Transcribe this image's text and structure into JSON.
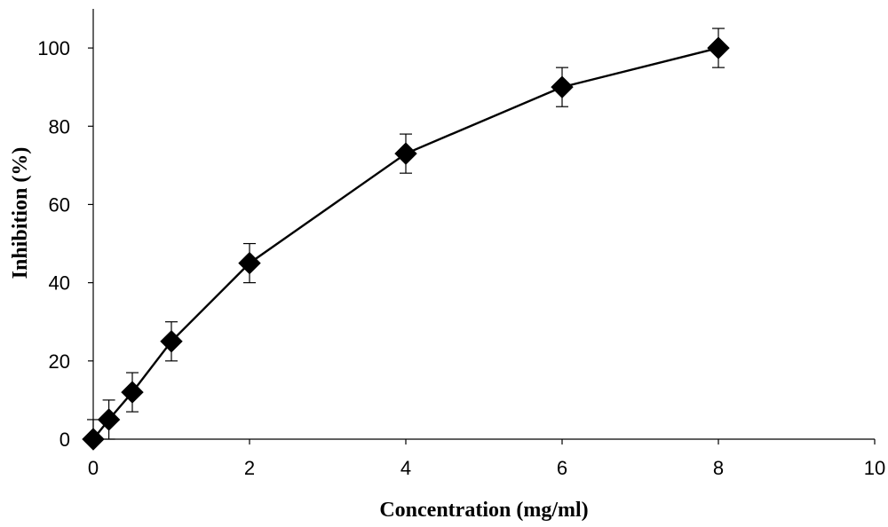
{
  "chart_data": {
    "type": "scatter",
    "title": "",
    "xlabel": "Concentration (mg/ml)",
    "ylabel": "Inhibition (%)",
    "xlim": [
      0,
      10
    ],
    "ylim": [
      0,
      110
    ],
    "x_ticks": [
      0,
      2,
      4,
      6,
      8,
      10
    ],
    "y_ticks": [
      0,
      20,
      40,
      60,
      80,
      100
    ],
    "grid": false,
    "legend": "none",
    "marker": "diamond",
    "line": "solid",
    "line_color": "#000000",
    "marker_color": "#000000",
    "series": [
      {
        "x": [
          0,
          0.2,
          0.5,
          1,
          2,
          4,
          6,
          8
        ],
        "y": [
          0,
          5,
          12,
          25,
          45,
          73,
          90,
          100
        ],
        "error": [
          5,
          5,
          5,
          5,
          5,
          5,
          5,
          5
        ]
      }
    ]
  }
}
